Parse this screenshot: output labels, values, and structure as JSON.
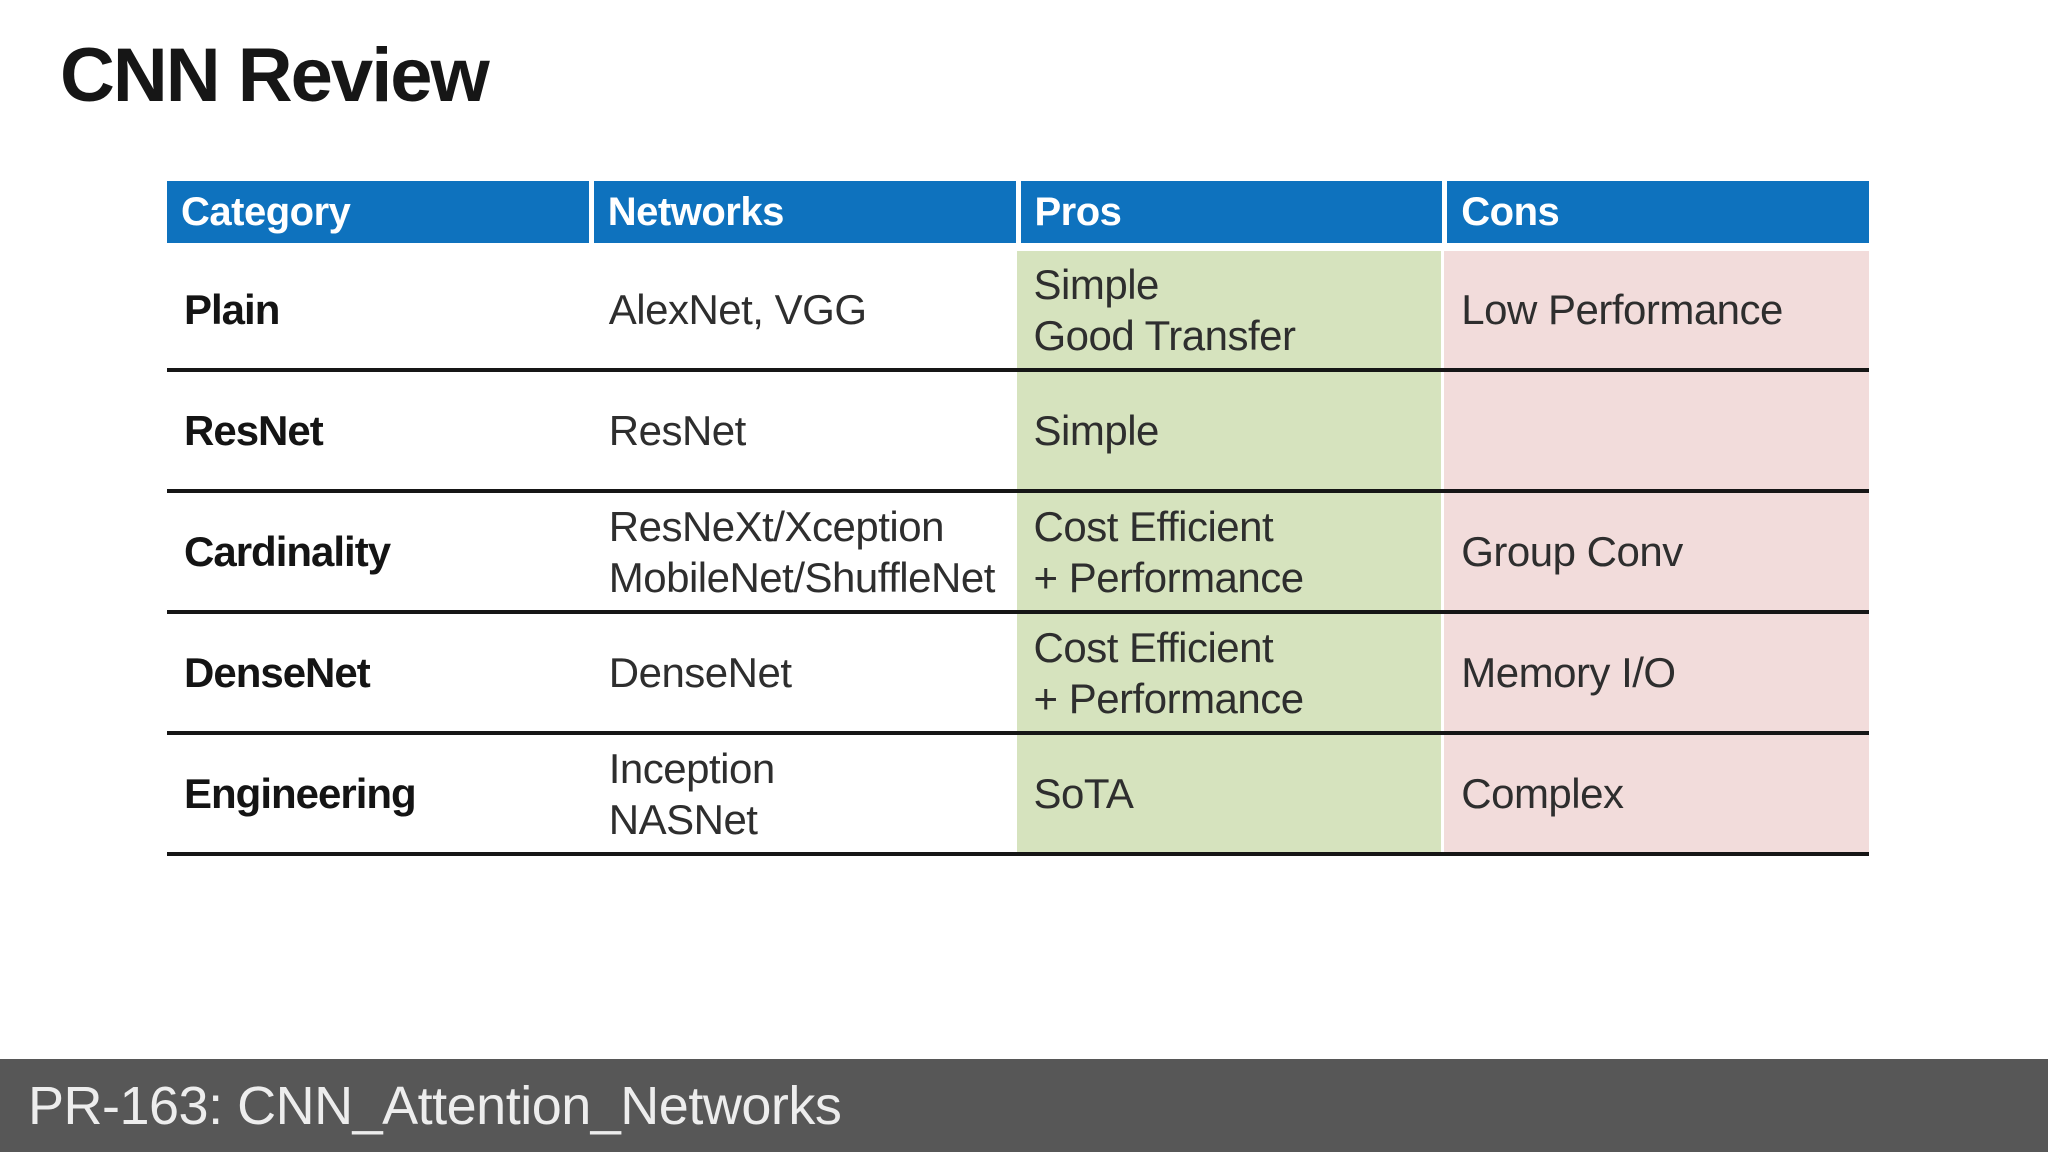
{
  "slide": {
    "title": "CNN Review",
    "background": "#ffffff"
  },
  "table": {
    "columns": [
      "Category",
      "Networks",
      "Pros",
      "Cons"
    ],
    "colors": {
      "header_bg": "#0E72BE",
      "header_text": "#ffffff",
      "pros_bg": "#D6E3BE",
      "cons_bg": "#F2DCDB",
      "divider": "#161616"
    },
    "rows": [
      {
        "category": "Plain",
        "networks": [
          "AlexNet, VGG"
        ],
        "pros": [
          "Simple",
          "Good Transfer"
        ],
        "cons": [
          "Low Performance"
        ]
      },
      {
        "category": "ResNet",
        "networks": [
          "ResNet"
        ],
        "pros": [
          "Simple"
        ],
        "cons": []
      },
      {
        "category": "Cardinality",
        "networks": [
          "ResNeXt/Xception",
          "MobileNet/ShuffleNet"
        ],
        "pros": [
          "Cost Efficient",
          "+ Performance"
        ],
        "cons": [
          "Group Conv"
        ]
      },
      {
        "category": "DenseNet",
        "networks": [
          "DenseNet"
        ],
        "pros": [
          "Cost Efficient",
          "+ Performance"
        ],
        "cons": [
          "Memory I/O"
        ]
      },
      {
        "category": "Engineering",
        "networks": [
          "Inception",
          "NASNet"
        ],
        "pros": [
          "SoTA"
        ],
        "cons": [
          "Complex"
        ]
      }
    ]
  },
  "footer": {
    "text": "PR-163: CNN_Attention_Networks",
    "bg": "#575757",
    "text_color": "#EDEDED"
  }
}
